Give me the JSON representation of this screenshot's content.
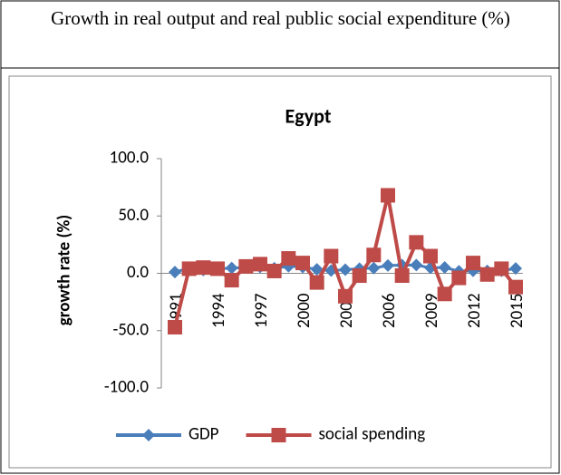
{
  "header": "Growth in real output and real public social expenditure (%)",
  "chart_data": {
    "type": "line",
    "title": "Egypt",
    "y_label": "growth rate (%)",
    "categories": [
      "1991",
      null,
      null,
      "1994",
      null,
      null,
      "1997",
      null,
      null,
      "2000",
      null,
      null,
      "2003",
      null,
      null,
      "2006",
      null,
      null,
      "2009",
      null,
      null,
      "2012",
      null,
      null,
      "2015"
    ],
    "series": [
      {
        "name": "GDP",
        "color": "#4a7ebb",
        "marker": "diamond",
        "values": [
          1.1,
          4.4,
          2.9,
          3.9,
          4.6,
          5.0,
          5.5,
          4.4,
          6.1,
          5.4,
          3.5,
          2.4,
          3.2,
          4.1,
          4.5,
          6.8,
          7.1,
          7.2,
          4.7,
          5.1,
          1.8,
          2.2,
          2.1,
          2.2,
          4.2
        ]
      },
      {
        "name": "social spending",
        "color": "#be4b48",
        "marker": "square",
        "values": [
          -47,
          4,
          5,
          4,
          -6,
          6,
          8,
          2,
          13,
          9,
          -8,
          15,
          -20,
          -2,
          16,
          68,
          -2,
          27,
          15,
          -18,
          -4,
          9,
          -1,
          4,
          -12
        ]
      }
    ],
    "ylim": [
      -100,
      100
    ],
    "yticks": [
      {
        "value": -100,
        "label": "-100.0"
      },
      {
        "value": -50,
        "label": "-50.0"
      },
      {
        "value": 0,
        "label": "0.0"
      },
      {
        "value": 50,
        "label": "50.0"
      },
      {
        "value": 100,
        "label": "100.0"
      }
    ],
    "legend": "bottom"
  }
}
